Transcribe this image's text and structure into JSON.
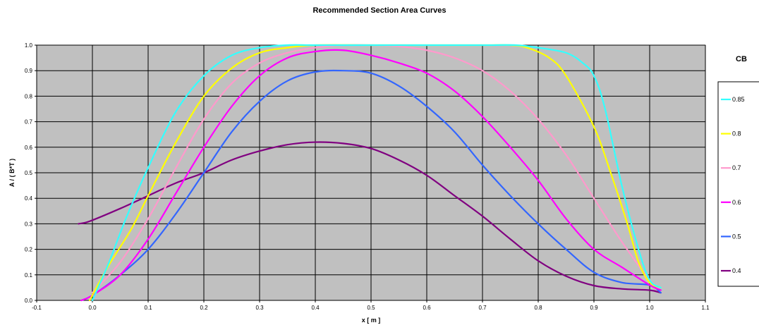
{
  "chart_data": {
    "type": "line",
    "title": "Recommended Section Area Curves",
    "xlabel": "x [ m ]",
    "ylabel": "A / ( B*T )",
    "xlim": [
      -0.1,
      1.1
    ],
    "ylim": [
      0.0,
      1.0
    ],
    "xticks": [
      "-0.1",
      "0.0",
      "0.1",
      "0.2",
      "0.3",
      "0.4",
      "0.5",
      "0.6",
      "0.7",
      "0.8",
      "0.9",
      "1.0",
      "1.1"
    ],
    "yticks": [
      "0.0",
      "0.1",
      "0.2",
      "0.3",
      "0.4",
      "0.5",
      "0.6",
      "0.7",
      "0.8",
      "0.9",
      "1.0"
    ],
    "grid": true,
    "legend_title": "CB",
    "legend_position": "right",
    "plot_background": "#C0C0C0",
    "series": [
      {
        "name": "0.85",
        "color": "#33FFFF",
        "x": [
          0.0,
          0.03,
          0.06,
          0.1,
          0.15,
          0.2,
          0.25,
          0.3,
          0.35,
          0.4,
          0.5,
          0.6,
          0.7,
          0.76,
          0.8,
          0.85,
          0.88,
          0.9,
          0.92,
          0.95,
          0.98,
          1.0,
          1.02
        ],
        "y": [
          0.0,
          0.15,
          0.32,
          0.52,
          0.74,
          0.88,
          0.96,
          0.99,
          1.0,
          1.0,
          1.0,
          1.0,
          1.0,
          1.0,
          0.99,
          0.97,
          0.93,
          0.88,
          0.75,
          0.45,
          0.2,
          0.08,
          0.05
        ]
      },
      {
        "name": "0.8",
        "color": "#FFFF00",
        "x": [
          -0.005,
          0.03,
          0.07,
          0.1,
          0.15,
          0.2,
          0.25,
          0.3,
          0.35,
          0.4,
          0.5,
          0.6,
          0.7,
          0.75,
          0.78,
          0.82,
          0.85,
          0.9,
          0.93,
          0.96,
          0.98,
          1.0,
          1.02
        ],
        "y": [
          0.0,
          0.14,
          0.28,
          0.41,
          0.62,
          0.8,
          0.91,
          0.97,
          0.99,
          1.0,
          1.0,
          1.0,
          1.0,
          1.0,
          0.99,
          0.95,
          0.88,
          0.68,
          0.5,
          0.3,
          0.15,
          0.07,
          0.05
        ]
      },
      {
        "name": "0.7",
        "color": "#FF99CC",
        "x": [
          0.0,
          0.05,
          0.1,
          0.15,
          0.2,
          0.25,
          0.3,
          0.35,
          0.4,
          0.45,
          0.5,
          0.55,
          0.6,
          0.65,
          0.7,
          0.75,
          0.8,
          0.85,
          0.9,
          0.95,
          1.0,
          1.02
        ],
        "y": [
          0.03,
          0.15,
          0.32,
          0.52,
          0.71,
          0.85,
          0.93,
          0.97,
          0.99,
          1.0,
          1.0,
          0.995,
          0.98,
          0.95,
          0.9,
          0.82,
          0.71,
          0.57,
          0.4,
          0.23,
          0.08,
          0.05
        ]
      },
      {
        "name": "0.6",
        "color": "#FF00FF",
        "x": [
          -0.02,
          0.0,
          0.05,
          0.1,
          0.15,
          0.2,
          0.25,
          0.3,
          0.35,
          0.4,
          0.45,
          0.5,
          0.55,
          0.6,
          0.65,
          0.7,
          0.75,
          0.8,
          0.85,
          0.9,
          0.95,
          1.0,
          1.02
        ],
        "y": [
          0.0,
          0.02,
          0.1,
          0.24,
          0.42,
          0.6,
          0.76,
          0.88,
          0.95,
          0.975,
          0.98,
          0.96,
          0.93,
          0.89,
          0.82,
          0.72,
          0.6,
          0.47,
          0.32,
          0.2,
          0.13,
          0.06,
          0.04
        ]
      },
      {
        "name": "0.5",
        "color": "#3366FF",
        "x": [
          -0.02,
          0.0,
          0.05,
          0.1,
          0.15,
          0.2,
          0.25,
          0.3,
          0.35,
          0.4,
          0.45,
          0.5,
          0.55,
          0.6,
          0.65,
          0.7,
          0.75,
          0.8,
          0.85,
          0.9,
          0.95,
          1.0,
          1.02
        ],
        "y": [
          0.0,
          0.02,
          0.1,
          0.2,
          0.34,
          0.5,
          0.66,
          0.78,
          0.86,
          0.895,
          0.9,
          0.89,
          0.84,
          0.76,
          0.66,
          0.53,
          0.41,
          0.3,
          0.2,
          0.11,
          0.07,
          0.06,
          0.03
        ]
      },
      {
        "name": "0.4",
        "color": "#800080",
        "x": [
          -0.025,
          -0.005,
          0.05,
          0.1,
          0.15,
          0.2,
          0.25,
          0.3,
          0.35,
          0.4,
          0.45,
          0.5,
          0.55,
          0.6,
          0.65,
          0.7,
          0.75,
          0.8,
          0.85,
          0.9,
          0.95,
          1.0,
          1.02
        ],
        "y": [
          0.3,
          0.31,
          0.36,
          0.41,
          0.46,
          0.5,
          0.55,
          0.585,
          0.61,
          0.62,
          0.615,
          0.595,
          0.55,
          0.49,
          0.41,
          0.33,
          0.24,
          0.155,
          0.095,
          0.058,
          0.045,
          0.04,
          0.03
        ]
      }
    ]
  }
}
